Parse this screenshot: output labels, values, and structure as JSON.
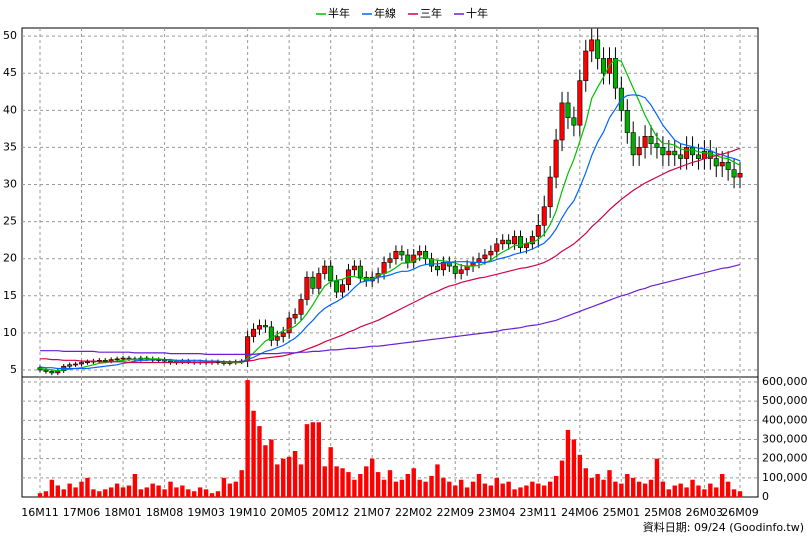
{
  "chart_data": {
    "type": "candlestick",
    "categories": [
      "16M11",
      null,
      null,
      null,
      null,
      null,
      null,
      "17M06",
      null,
      null,
      null,
      null,
      null,
      null,
      "18M01",
      null,
      null,
      null,
      null,
      null,
      null,
      "18M08",
      null,
      null,
      null,
      null,
      null,
      null,
      "19M03",
      null,
      null,
      null,
      null,
      null,
      null,
      "19M10",
      null,
      null,
      null,
      null,
      null,
      null,
      "20M05",
      null,
      null,
      null,
      null,
      null,
      null,
      "20M12",
      null,
      null,
      null,
      null,
      null,
      null,
      "21M07",
      null,
      null,
      null,
      null,
      null,
      null,
      "22M02",
      null,
      null,
      null,
      null,
      null,
      null,
      "22M09",
      null,
      null,
      null,
      null,
      null,
      null,
      "23M04",
      null,
      null,
      null,
      null,
      null,
      null,
      "23M11",
      null,
      null,
      null,
      null,
      null,
      null,
      "24M06",
      null,
      null,
      null,
      null,
      null,
      null,
      "25M01",
      null,
      null,
      null,
      null,
      null,
      null,
      "25M08",
      null,
      null,
      null,
      null,
      null,
      null,
      "26M03",
      null,
      null,
      null,
      null,
      null,
      "26M09"
    ],
    "open": [
      5.3,
      5.0,
      4.8,
      4.6,
      4.9,
      5.5,
      5.7,
      5.8,
      6.0,
      6.1,
      6.2,
      6.3,
      6.2,
      6.4,
      6.5,
      6.6,
      6.5,
      6.4,
      6.6,
      6.5,
      6.3,
      6.4,
      6.2,
      6.0,
      6.1,
      6.2,
      6.1,
      6.0,
      6.1,
      6.0,
      6.1,
      6.0,
      5.9,
      6.0,
      6.1,
      6.2,
      9.5,
      10.5,
      11.0,
      10.8,
      9.0,
      9.5,
      10.0,
      12.0,
      12.5,
      14.5,
      17.5,
      16.0,
      18.0,
      19.0,
      17.0,
      15.5,
      16.5,
      18.5,
      19.0,
      17.5,
      17.0,
      17.5,
      18.0,
      19.5,
      20.0,
      21.0,
      20.5,
      19.5,
      20.5,
      21.0,
      20.0,
      19.0,
      18.5,
      19.5,
      19.0,
      18.0,
      18.5,
      19.0,
      19.5,
      20.0,
      20.5,
      21.0,
      22.0,
      22.5,
      22.0,
      23.0,
      21.5,
      22.0,
      23.0,
      24.5,
      27.0,
      31.0,
      36.0,
      41.0,
      39.0,
      38.0,
      44.0,
      48.0,
      49.5,
      47.0,
      45.0,
      47.0,
      43.0,
      40.0,
      37.0,
      34.0,
      35.0,
      36.5,
      35.5,
      35.0,
      34.0,
      34.5,
      34.0,
      33.5,
      35.0,
      34.0,
      33.5,
      34.5,
      33.5,
      32.5,
      33.0,
      32.0,
      31.0
    ],
    "high": [
      5.6,
      5.3,
      5.1,
      5.2,
      5.8,
      6.0,
      6.1,
      6.3,
      6.4,
      6.5,
      6.6,
      6.6,
      6.7,
      6.8,
      6.9,
      6.9,
      6.8,
      6.9,
      6.9,
      6.8,
      6.7,
      6.7,
      6.5,
      6.4,
      6.5,
      6.5,
      6.4,
      6.4,
      6.4,
      6.4,
      6.4,
      6.3,
      6.3,
      6.4,
      6.5,
      10.3,
      11.3,
      11.8,
      11.8,
      11.6,
      10.3,
      10.8,
      12.8,
      13.3,
      15.3,
      18.3,
      18.3,
      18.8,
      19.8,
      19.8,
      17.8,
      17.3,
      19.3,
      19.8,
      19.8,
      18.3,
      18.3,
      18.8,
      20.3,
      20.8,
      21.8,
      21.8,
      21.3,
      21.3,
      21.8,
      21.8,
      20.8,
      19.8,
      20.3,
      20.3,
      19.8,
      19.3,
      19.8,
      20.3,
      20.8,
      21.3,
      21.8,
      22.8,
      23.3,
      23.3,
      23.8,
      23.8,
      22.8,
      23.8,
      26.0,
      28.5,
      32.5,
      37.5,
      42.5,
      42.5,
      40.5,
      45.5,
      49.5,
      51.0,
      51.0,
      48.5,
      48.5,
      48.5,
      44.5,
      41.5,
      38.5,
      36.5,
      38.0,
      38.0,
      37.0,
      36.5,
      36.0,
      36.0,
      35.5,
      36.5,
      36.5,
      35.5,
      36.0,
      36.0,
      35.0,
      34.5,
      34.5,
      33.5,
      33.0
    ],
    "low": [
      4.7,
      4.5,
      4.3,
      4.3,
      4.6,
      5.2,
      5.4,
      5.5,
      5.7,
      5.8,
      5.9,
      5.9,
      5.9,
      6.1,
      6.2,
      6.2,
      6.1,
      6.1,
      6.2,
      6.0,
      6.0,
      5.9,
      5.7,
      5.7,
      5.8,
      5.8,
      5.7,
      5.7,
      5.7,
      5.7,
      5.7,
      5.6,
      5.6,
      5.7,
      5.8,
      5.4,
      8.7,
      9.7,
      10.0,
      8.2,
      8.2,
      8.7,
      9.2,
      11.2,
      11.7,
      13.7,
      15.2,
      15.2,
      17.2,
      16.2,
      14.7,
      14.7,
      15.7,
      17.7,
      16.7,
      16.2,
      16.2,
      16.7,
      17.2,
      18.7,
      19.2,
      19.7,
      18.7,
      18.7,
      19.7,
      19.2,
      18.2,
      17.7,
      17.7,
      18.2,
      17.2,
      17.2,
      17.7,
      18.2,
      18.7,
      19.2,
      19.7,
      20.2,
      21.2,
      21.2,
      21.2,
      20.7,
      20.7,
      21.2,
      21.5,
      23.0,
      25.5,
      29.5,
      34.5,
      37.5,
      36.5,
      36.5,
      42.5,
      46.5,
      45.5,
      43.5,
      43.5,
      41.5,
      38.5,
      35.5,
      32.5,
      32.5,
      33.5,
      34.0,
      33.5,
      32.5,
      32.5,
      32.5,
      32.0,
      32.0,
      32.5,
      32.0,
      32.0,
      32.0,
      31.0,
      31.0,
      30.5,
      29.5,
      29.5
    ],
    "close": [
      5.0,
      4.8,
      4.6,
      4.9,
      5.5,
      5.7,
      5.8,
      6.0,
      6.1,
      6.2,
      6.3,
      6.2,
      6.4,
      6.5,
      6.6,
      6.5,
      6.4,
      6.6,
      6.5,
      6.3,
      6.4,
      6.2,
      6.0,
      6.1,
      6.2,
      6.1,
      6.0,
      6.1,
      6.0,
      6.1,
      6.0,
      5.9,
      6.0,
      6.1,
      6.2,
      9.5,
      10.5,
      11.0,
      10.8,
      9.0,
      9.5,
      10.0,
      12.0,
      12.5,
      14.5,
      17.5,
      16.0,
      18.0,
      19.0,
      17.0,
      15.5,
      16.5,
      18.5,
      19.0,
      17.5,
      17.0,
      17.5,
      18.0,
      19.5,
      20.0,
      21.0,
      20.5,
      19.5,
      20.5,
      21.0,
      20.0,
      19.0,
      18.5,
      19.5,
      19.0,
      18.0,
      18.5,
      19.0,
      19.5,
      20.0,
      20.5,
      21.0,
      22.0,
      22.5,
      22.0,
      23.0,
      21.5,
      22.0,
      23.0,
      24.5,
      27.0,
      31.0,
      36.0,
      41.0,
      39.0,
      38.0,
      44.0,
      48.0,
      49.5,
      47.0,
      45.0,
      47.0,
      43.0,
      40.0,
      37.0,
      34.0,
      35.0,
      36.5,
      35.5,
      35.0,
      34.0,
      34.5,
      34.0,
      33.5,
      35.0,
      34.0,
      33.5,
      34.5,
      33.5,
      32.5,
      33.0,
      32.0,
      31.0,
      31.5
    ],
    "up_color": "#ff0000",
    "down_color": "#00b000",
    "series": [
      {
        "name": "半年",
        "color": "#00c000",
        "values": [
          5.2,
          5.1,
          5.0,
          4.9,
          5.0,
          5.1,
          5.2,
          5.3,
          5.5,
          5.7,
          5.9,
          6.0,
          6.1,
          6.2,
          6.3,
          6.4,
          6.4,
          6.5,
          6.5,
          6.5,
          6.5,
          6.4,
          6.3,
          6.2,
          6.2,
          6.1,
          6.1,
          6.1,
          6.1,
          6.1,
          6.1,
          6.0,
          6.0,
          6.0,
          6.0,
          6.6,
          7.3,
          8.1,
          8.9,
          9.3,
          9.8,
          10.3,
          10.5,
          10.9,
          11.6,
          12.6,
          13.8,
          15.1,
          16.3,
          16.9,
          17.1,
          17.2,
          17.6,
          17.6,
          17.3,
          17.3,
          17.3,
          17.8,
          18.0,
          18.3,
          18.8,
          19.4,
          19.4,
          19.7,
          20.1,
          20.1,
          19.9,
          19.8,
          19.7,
          19.6,
          19.4,
          19.1,
          19.0,
          19.0,
          19.1,
          19.4,
          19.8,
          20.4,
          20.9,
          21.3,
          21.8,
          21.8,
          22.1,
          22.2,
          22.6,
          23.3,
          24.6,
          26.4,
          29.1,
          31.5,
          33.4,
          35.8,
          38.3,
          41.6,
          43.1,
          44.5,
          46.1,
          46.9,
          46.6,
          44.8,
          43.0,
          41.2,
          39.3,
          37.8,
          36.4,
          35.5,
          35.5,
          35.3,
          34.8,
          34.6,
          34.7,
          34.4,
          34.3,
          34.1,
          33.9,
          33.6,
          33.5,
          33.0,
          32.6
        ]
      },
      {
        "name": "年線",
        "color": "#0066ff",
        "values": [
          5.4,
          5.3,
          5.3,
          5.2,
          5.2,
          5.2,
          5.2,
          5.2,
          5.2,
          5.3,
          5.4,
          5.5,
          5.6,
          5.7,
          5.9,
          6.0,
          6.2,
          6.3,
          6.3,
          6.4,
          6.4,
          6.4,
          6.4,
          6.3,
          6.3,
          6.3,
          6.3,
          6.3,
          6.2,
          6.2,
          6.2,
          6.1,
          6.1,
          6.1,
          6.1,
          6.4,
          6.7,
          7.1,
          7.5,
          7.7,
          8.0,
          8.3,
          8.8,
          9.3,
          10.0,
          10.9,
          11.7,
          12.6,
          13.3,
          13.8,
          14.2,
          14.7,
          15.3,
          16.1,
          16.8,
          17.0,
          17.1,
          17.5,
          17.6,
          17.8,
          18.1,
          18.3,
          18.3,
          18.6,
          19.0,
          19.2,
          19.3,
          19.3,
          19.4,
          19.5,
          19.6,
          19.6,
          19.6,
          19.5,
          19.5,
          19.5,
          19.6,
          19.9,
          20.1,
          20.3,
          20.6,
          20.8,
          21.0,
          21.3,
          21.7,
          22.1,
          22.9,
          24.0,
          25.5,
          26.8,
          27.8,
          29.6,
          31.6,
          33.9,
          35.7,
          37.1,
          39.0,
          40.2,
          41.5,
          42.0,
          42.1,
          42.0,
          41.7,
          40.7,
          39.4,
          38.0,
          37.0,
          36.0,
          35.5,
          35.3,
          35.1,
          34.9,
          34.8,
          34.6,
          34.2,
          34.0,
          33.7,
          33.5,
          33.2
        ]
      },
      {
        "name": "三年",
        "color": "#d0004a",
        "values": [
          6.5,
          6.5,
          6.4,
          6.4,
          6.3,
          6.3,
          6.3,
          6.2,
          6.2,
          6.2,
          6.1,
          6.1,
          6.1,
          6.1,
          6.1,
          6.0,
          6.0,
          6.0,
          6.0,
          6.0,
          6.0,
          6.0,
          6.0,
          6.0,
          6.0,
          6.0,
          6.0,
          6.0,
          6.0,
          6.0,
          6.1,
          6.1,
          6.1,
          6.1,
          6.1,
          6.2,
          6.3,
          6.5,
          6.6,
          6.7,
          6.8,
          6.9,
          7.1,
          7.3,
          7.5,
          7.8,
          8.1,
          8.4,
          8.8,
          9.1,
          9.4,
          9.7,
          10.1,
          10.4,
          10.8,
          11.1,
          11.4,
          11.7,
          12.1,
          12.5,
          12.9,
          13.3,
          13.7,
          14.1,
          14.5,
          14.9,
          15.3,
          15.6,
          16.0,
          16.3,
          16.5,
          16.8,
          17.0,
          17.2,
          17.4,
          17.5,
          17.7,
          17.9,
          18.1,
          18.3,
          18.5,
          18.7,
          18.8,
          19.0,
          19.2,
          19.5,
          19.9,
          20.4,
          21.0,
          21.5,
          22.0,
          22.7,
          23.4,
          24.3,
          25.0,
          25.8,
          26.6,
          27.3,
          28.0,
          28.6,
          29.2,
          29.7,
          30.2,
          30.6,
          31.0,
          31.4,
          31.8,
          32.1,
          32.4,
          32.7,
          33.0,
          33.2,
          33.5,
          33.7,
          33.9,
          34.1,
          34.3,
          34.6,
          34.9
        ]
      },
      {
        "name": "十年",
        "color": "#6a1fd0",
        "values": [
          7.6,
          7.6,
          7.6,
          7.6,
          7.5,
          7.5,
          7.5,
          7.5,
          7.5,
          7.5,
          7.4,
          7.4,
          7.4,
          7.4,
          7.4,
          7.4,
          7.3,
          7.3,
          7.3,
          7.3,
          7.3,
          7.3,
          7.2,
          7.2,
          7.2,
          7.2,
          7.2,
          7.2,
          7.1,
          7.1,
          7.1,
          7.1,
          7.1,
          7.1,
          7.1,
          7.1,
          7.1,
          7.2,
          7.2,
          7.2,
          7.2,
          7.3,
          7.3,
          7.3,
          7.4,
          7.4,
          7.5,
          7.5,
          7.6,
          7.7,
          7.7,
          7.8,
          7.9,
          7.9,
          8.0,
          8.1,
          8.2,
          8.2,
          8.3,
          8.4,
          8.5,
          8.6,
          8.7,
          8.8,
          8.9,
          9.0,
          9.1,
          9.2,
          9.3,
          9.4,
          9.5,
          9.6,
          9.7,
          9.8,
          9.9,
          10.0,
          10.1,
          10.2,
          10.4,
          10.5,
          10.6,
          10.7,
          10.9,
          11.0,
          11.1,
          11.3,
          11.5,
          11.7,
          12.0,
          12.3,
          12.6,
          12.9,
          13.2,
          13.5,
          13.8,
          14.1,
          14.4,
          14.7,
          15.0,
          15.2,
          15.5,
          15.8,
          16.0,
          16.3,
          16.5,
          16.7,
          16.9,
          17.1,
          17.3,
          17.5,
          17.7,
          17.9,
          18.1,
          18.3,
          18.5,
          18.7,
          18.8,
          19.0,
          19.2
        ]
      }
    ],
    "ylim": [
      4.05,
      51.1
    ],
    "yticks": [
      5,
      10,
      15,
      20,
      25,
      30,
      35,
      40,
      45,
      50
    ],
    "grid": true,
    "volume": {
      "color": "#ff0000",
      "ylim": [
        0,
        626000
      ],
      "yticks": [
        0,
        {
          "value": 100000,
          "label": "100,000"
        },
        {
          "value": 200000,
          "label": "200,000"
        },
        {
          "value": 300000,
          "label": "300,000"
        },
        {
          "value": 400000,
          "label": "400,000"
        },
        {
          "value": 500000,
          "label": "500,000"
        },
        {
          "value": 600000,
          "label": "600,000"
        }
      ],
      "values": [
        20000,
        30000,
        90000,
        60000,
        40000,
        70000,
        50000,
        80000,
        100000,
        40000,
        30000,
        40000,
        50000,
        70000,
        50000,
        60000,
        120000,
        40000,
        50000,
        70000,
        60000,
        40000,
        80000,
        50000,
        60000,
        40000,
        30000,
        50000,
        40000,
        20000,
        30000,
        100000,
        70000,
        80000,
        140000,
        610000,
        450000,
        370000,
        270000,
        300000,
        170000,
        200000,
        210000,
        240000,
        170000,
        380000,
        390000,
        390000,
        160000,
        260000,
        160000,
        150000,
        130000,
        90000,
        120000,
        160000,
        200000,
        130000,
        90000,
        140000,
        80000,
        90000,
        120000,
        150000,
        90000,
        80000,
        110000,
        170000,
        100000,
        80000,
        60000,
        90000,
        50000,
        80000,
        120000,
        70000,
        60000,
        100000,
        70000,
        80000,
        40000,
        50000,
        60000,
        80000,
        70000,
        60000,
        80000,
        110000,
        190000,
        350000,
        300000,
        220000,
        150000,
        100000,
        120000,
        90000,
        140000,
        80000,
        70000,
        120000,
        100000,
        80000,
        70000,
        90000,
        200000,
        80000,
        40000,
        60000,
        70000,
        50000,
        90000,
        60000,
        40000,
        70000,
        50000,
        120000,
        80000,
        40000,
        30000
      ]
    },
    "footer": "資料日期: 09/24 (Goodinfo.tw)"
  }
}
